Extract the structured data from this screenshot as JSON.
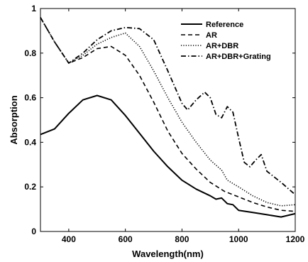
{
  "chart_data": {
    "type": "line",
    "title": "",
    "xlabel": "Wavelength(nm)",
    "ylabel": "Absorption",
    "xlim": [
      300,
      1200
    ],
    "ylim": [
      0,
      1
    ],
    "xticks": [
      400,
      600,
      800,
      1000,
      1200
    ],
    "yticks": [
      0,
      0.2,
      0.4,
      0.6,
      0.8,
      1
    ],
    "ytick_labels": [
      "0",
      "0.2",
      "0.4",
      "0.6",
      "0.8",
      "1"
    ],
    "grid": false,
    "legend_position": "top-right",
    "series": [
      {
        "name": "Reference",
        "style": "solid",
        "x": [
          300,
          350,
          400,
          450,
          500,
          550,
          600,
          650,
          700,
          750,
          800,
          850,
          900,
          920,
          940,
          960,
          980,
          1000,
          1050,
          1100,
          1150,
          1200
        ],
        "y": [
          0.435,
          0.46,
          0.53,
          0.59,
          0.61,
          0.59,
          0.52,
          0.44,
          0.36,
          0.29,
          0.23,
          0.19,
          0.16,
          0.145,
          0.15,
          0.125,
          0.12,
          0.095,
          0.085,
          0.075,
          0.065,
          0.08
        ]
      },
      {
        "name": "AR",
        "style": "dashed",
        "x": [
          300,
          350,
          400,
          450,
          500,
          550,
          600,
          650,
          700,
          750,
          800,
          850,
          900,
          950,
          1000,
          1050,
          1100,
          1150,
          1200
        ],
        "y": [
          0.96,
          0.85,
          0.755,
          0.78,
          0.82,
          0.83,
          0.79,
          0.7,
          0.58,
          0.45,
          0.35,
          0.28,
          0.22,
          0.18,
          0.155,
          0.13,
          0.11,
          0.095,
          0.09
        ]
      },
      {
        "name": "AR+DBR",
        "style": "dotted",
        "x": [
          300,
          350,
          400,
          450,
          500,
          550,
          600,
          650,
          700,
          750,
          800,
          850,
          900,
          940,
          960,
          1000,
          1050,
          1100,
          1150,
          1200
        ],
        "y": [
          0.96,
          0.85,
          0.755,
          0.79,
          0.84,
          0.87,
          0.89,
          0.83,
          0.72,
          0.6,
          0.49,
          0.4,
          0.32,
          0.275,
          0.23,
          0.2,
          0.16,
          0.13,
          0.115,
          0.12
        ]
      },
      {
        "name": "AR+DBR+Grating",
        "style": "dashdot",
        "x": [
          300,
          350,
          400,
          450,
          500,
          550,
          600,
          650,
          700,
          750,
          800,
          820,
          850,
          880,
          900,
          920,
          940,
          960,
          980,
          1000,
          1020,
          1040,
          1060,
          1080,
          1100,
          1150,
          1200
        ],
        "y": [
          0.96,
          0.85,
          0.755,
          0.8,
          0.86,
          0.9,
          0.915,
          0.91,
          0.86,
          0.72,
          0.575,
          0.545,
          0.59,
          0.625,
          0.6,
          0.525,
          0.51,
          0.56,
          0.535,
          0.42,
          0.31,
          0.29,
          0.32,
          0.345,
          0.27,
          0.22,
          0.165
        ]
      }
    ]
  }
}
